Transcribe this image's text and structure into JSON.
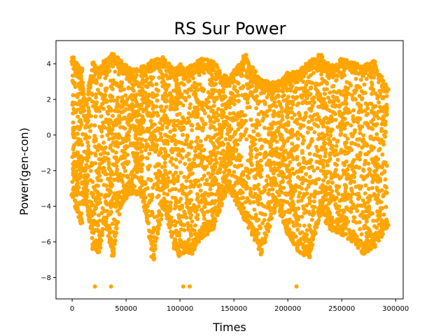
{
  "chart_data": {
    "type": "scatter",
    "title": "RS Sur Power",
    "xlabel": "Times",
    "ylabel": "Power(gen-con)",
    "xlim": [
      -15000,
      307000
    ],
    "ylim": [
      -9.2,
      5.3
    ],
    "grid": false,
    "xticks": [
      0,
      50000,
      100000,
      150000,
      200000,
      250000,
      300000
    ],
    "xtick_labels": [
      "0",
      "50000",
      "100000",
      "150000",
      "200000",
      "250000",
      "300000"
    ],
    "yticks": [
      -8,
      -6,
      -4,
      -2,
      0,
      2,
      4
    ],
    "ytick_labels": [
      "−8",
      "−6",
      "−4",
      "−2",
      "0",
      "2",
      "4"
    ],
    "series": [
      {
        "color": "#FFA500",
        "x_range": [
          0,
          292000
        ],
        "y_range": [
          -8.5,
          4.6
        ],
        "envelope": {
          "x": [
            0,
            8000,
            12000,
            20000,
            25000,
            30000,
            38000,
            45000,
            55000,
            65000,
            75000,
            85000,
            95000,
            100000,
            105000,
            110000,
            120000,
            130000,
            145000,
            160000,
            175000,
            190000,
            200000,
            210000,
            220000,
            230000,
            240000,
            250000,
            260000,
            270000,
            280000,
            292000
          ],
          "upper": [
            4.4,
            3.8,
            2.0,
            4.1,
            3.8,
            4.2,
            4.6,
            4.2,
            3.7,
            3.9,
            4.2,
            4.4,
            3.7,
            4.0,
            3.7,
            3.9,
            4.3,
            4.2,
            3.2,
            4.5,
            3.1,
            3.0,
            3.5,
            3.6,
            4.2,
            4.5,
            3.9,
            4.3,
            4.1,
            3.9,
            4.2,
            2.7
          ],
          "lower": [
            -3.6,
            -5.0,
            -3.5,
            -6.4,
            -6.6,
            -5.0,
            -6.8,
            -4.0,
            -3.3,
            -3.5,
            -7.0,
            -4.0,
            -6.4,
            -6.8,
            -6.6,
            -6.7,
            -5.8,
            -5.4,
            -3.0,
            -4.8,
            -6.7,
            -4.0,
            -5.6,
            -6.6,
            -6.9,
            -4.5,
            -5.4,
            -5.6,
            -6.0,
            -6.7,
            -6.3,
            -5.3
          ]
        },
        "notable_points": [
          {
            "x": 21000,
            "y": -8.5
          },
          {
            "x": 36000,
            "y": -8.5
          },
          {
            "x": 103000,
            "y": -8.5
          },
          {
            "x": 109000,
            "y": -8.5
          },
          {
            "x": 208000,
            "y": -8.5
          }
        ]
      }
    ]
  }
}
